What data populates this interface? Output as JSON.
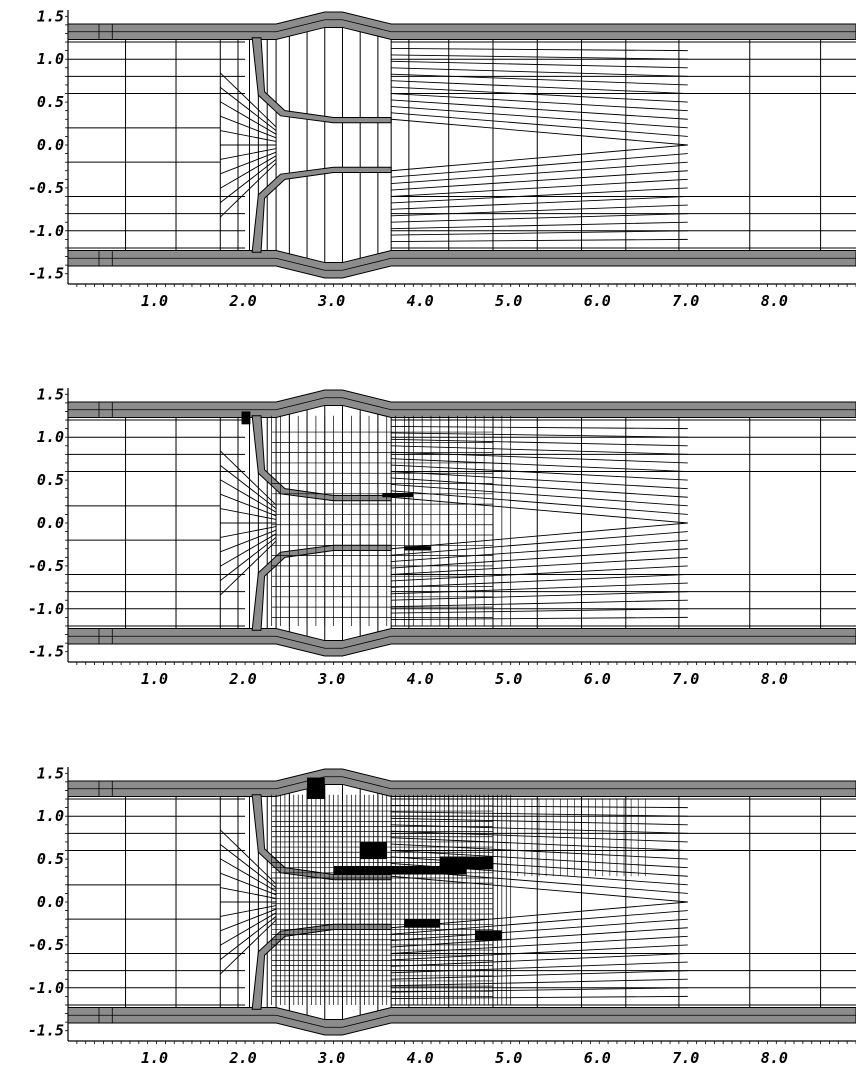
{
  "panels": [
    {
      "id": "mesh-level-1",
      "y_ticks": [
        "1.5",
        "1.0",
        "0.5",
        "0.0",
        "-0.5",
        "-1.0",
        "-1.5"
      ],
      "x_ticks": [
        "1.0",
        "2.0",
        "3.0",
        "4.0",
        "5.0",
        "6.0",
        "7.0",
        "8.0"
      ],
      "refinement": 1
    },
    {
      "id": "mesh-level-2",
      "y_ticks": [
        "1.5",
        "1.0",
        "0.5",
        "0.0",
        "-0.5",
        "-1.0",
        "-1.5"
      ],
      "x_ticks": [
        "1.0",
        "2.0",
        "3.0",
        "4.0",
        "5.0",
        "6.0",
        "7.0",
        "8.0"
      ],
      "refinement": 2
    },
    {
      "id": "mesh-level-3",
      "y_ticks": [
        "1.5",
        "1.0",
        "0.5",
        "0.0",
        "-0.5",
        "-1.0",
        "-1.5"
      ],
      "x_ticks": [
        "1.0",
        "2.0",
        "3.0",
        "4.0",
        "5.0",
        "6.0",
        "7.0",
        "8.0"
      ],
      "refinement": 3
    }
  ],
  "colors": {
    "grid": "#000000",
    "wall": "#8c8c8c",
    "background": "#ffffff"
  }
}
